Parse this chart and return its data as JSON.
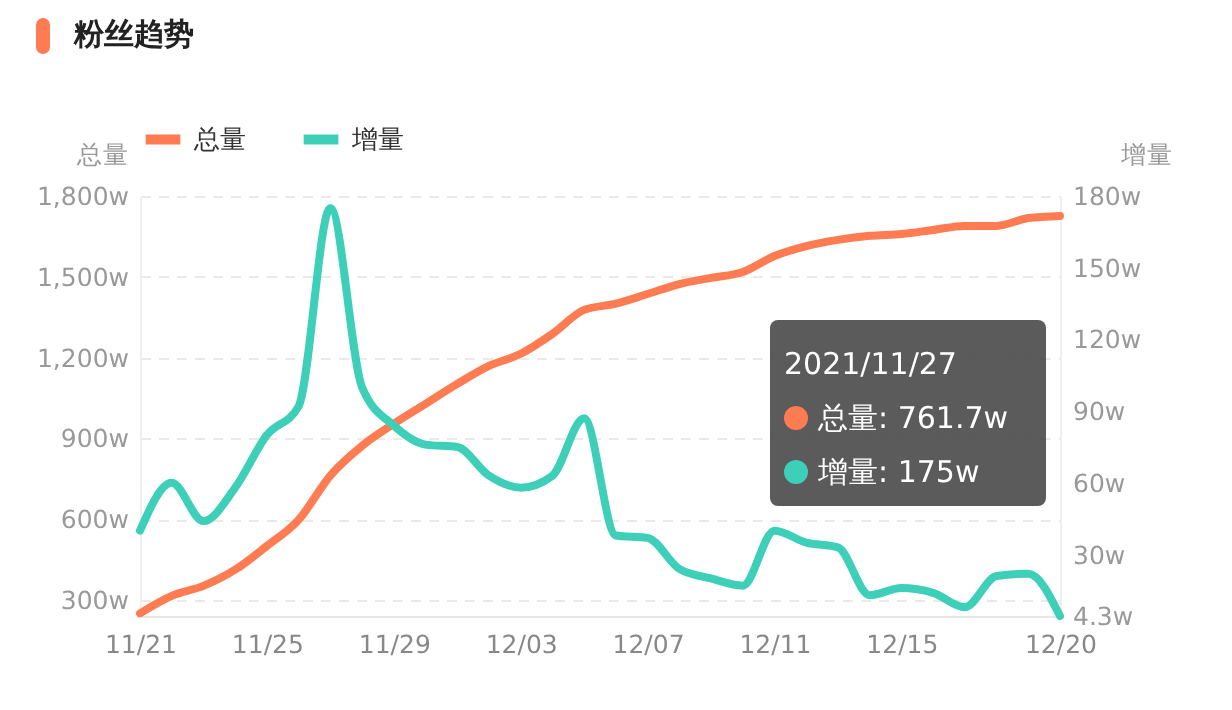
{
  "chart_data": {
    "type": "line",
    "title": "粉丝趋势",
    "categories": [
      "11/21",
      null,
      null,
      null,
      "11/25",
      null,
      null,
      null,
      "11/29",
      null,
      null,
      null,
      "12/03",
      null,
      null,
      null,
      "12/07",
      null,
      null,
      null,
      "12/11",
      null,
      null,
      null,
      "12/15",
      null,
      null,
      null,
      null,
      "12/20"
    ],
    "series": [
      {
        "name": "总量",
        "color": "#ff7b52",
        "axis": "y",
        "values": [
          250,
          315,
          352,
          412,
          500,
          597,
          761.7,
          872,
          954,
          1028,
          1102,
          1169,
          1214,
          1288,
          1377,
          1400,
          1436,
          1473,
          1496,
          1518,
          1577,
          1614,
          1637,
          1652,
          1659,
          1674,
          1689,
          1689,
          1718,
          1726
        ]
      },
      {
        "name": "增量",
        "color": "#3ecfb9",
        "axis": "y2",
        "values": [
          40,
          60,
          44,
          58,
          80,
          92,
          175,
          100,
          84,
          76,
          75,
          63,
          58,
          63,
          87,
          38,
          37,
          24,
          20,
          17,
          40,
          35,
          33,
          13,
          16,
          14,
          8,
          21,
          22,
          4.3
        ]
      }
    ],
    "ylabel": "总量",
    "y2label": "增量",
    "ylim": [
      240,
      1800
    ],
    "yticks": [
      {
        "value": 300,
        "label": "300w"
      },
      {
        "value": 600,
        "label": "600w"
      },
      {
        "value": 900,
        "label": "900w"
      },
      {
        "value": 1200,
        "label": "1,200w"
      },
      {
        "value": 1500,
        "label": "1,500w"
      },
      {
        "value": 1800,
        "label": "1,800w"
      }
    ],
    "y2lim": [
      4.3,
      180
    ],
    "y2ticks": [
      {
        "value": 4.3,
        "label": "4.3w"
      },
      {
        "value": 30,
        "label": "30w"
      },
      {
        "value": 60,
        "label": "60w"
      },
      {
        "value": 90,
        "label": "90w"
      },
      {
        "value": 120,
        "label": "120w"
      },
      {
        "value": 150,
        "label": "150w"
      },
      {
        "value": 180,
        "label": "180w"
      }
    ],
    "grid": "y",
    "legend": "top",
    "marker": "none",
    "line_style": "solid",
    "annotations": [
      "2021/11/27",
      "总量: 761.7w",
      "增量: 175w"
    ]
  }
}
